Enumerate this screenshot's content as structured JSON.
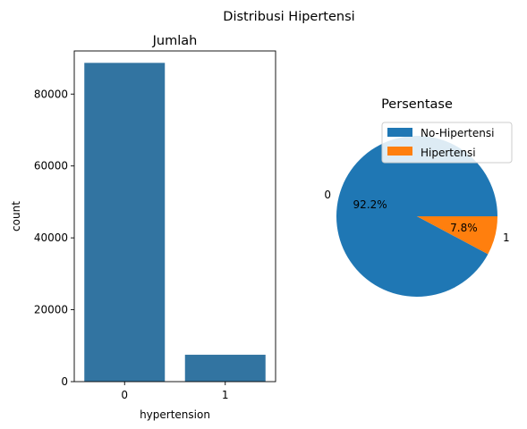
{
  "figure_title": "Distribusi Hipertensi",
  "colors": {
    "blue": "#1f77b4",
    "bar_blue": "#3274a1",
    "orange": "#ff7f0e",
    "axis": "#000000"
  },
  "chart_data": [
    {
      "type": "bar",
      "title": "Jumlah",
      "xlabel": "hypertension",
      "ylabel": "count",
      "categories": [
        "0",
        "1"
      ],
      "values": [
        88685,
        7485
      ],
      "ylim": [
        0,
        92000
      ],
      "yticks": [
        0,
        20000,
        40000,
        60000,
        80000
      ],
      "ytick_labels": [
        "0",
        "20000",
        "40000",
        "60000",
        "80000"
      ],
      "grid": false
    },
    {
      "type": "pie",
      "title": "Persentase",
      "labels": [
        "0",
        "1"
      ],
      "values": [
        92.2,
        7.8
      ],
      "pct_labels": [
        "92.2%",
        "7.8%"
      ],
      "legend": [
        "No-Hipertensi",
        "Hipertensi"
      ],
      "legend_position": "upper right"
    }
  ]
}
